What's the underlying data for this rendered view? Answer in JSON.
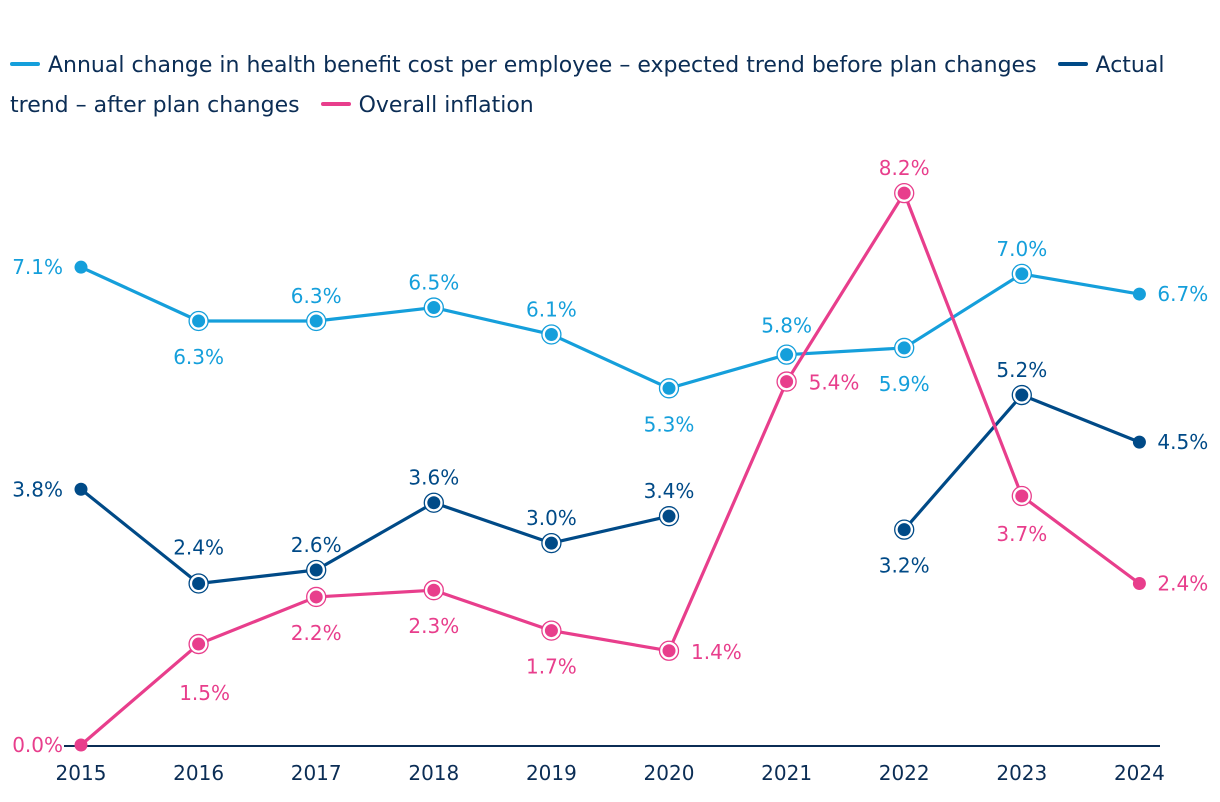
{
  "chart_data": {
    "type": "line",
    "title": "",
    "xlabel": "",
    "ylabel": "",
    "ylim": [
      0,
      8.2
    ],
    "grid": false,
    "legend_position": "top",
    "categories": [
      "2015",
      "2016",
      "2017",
      "2018",
      "2019",
      "2020",
      "2021",
      "2022",
      "2023",
      "2024"
    ],
    "series": [
      {
        "name": "Annual change in health benefit cost per employee – expected trend before plan changes",
        "color": "#159fdb",
        "values": [
          7.1,
          6.3,
          6.3,
          6.5,
          6.1,
          5.3,
          5.8,
          5.9,
          7.0,
          6.7
        ],
        "labels": [
          "7.1%",
          "6.3%",
          "6.3%",
          "6.5%",
          "6.1%",
          "5.3%",
          "5.8%",
          "5.9%",
          "7.0%",
          "6.7%"
        ]
      },
      {
        "name": "Actual trend – after plan changes",
        "color": "#004a87",
        "values": [
          3.8,
          2.4,
          2.6,
          3.6,
          3.0,
          3.4,
          null,
          3.2,
          5.2,
          4.5
        ],
        "labels": [
          "3.8%",
          "2.4%",
          "2.6%",
          "3.6%",
          "3.0%",
          "3.4%",
          null,
          "3.2%",
          "5.2%",
          "4.5%"
        ]
      },
      {
        "name": "Overall inflation",
        "color": "#e83e8c",
        "values": [
          0.0,
          1.5,
          2.2,
          2.3,
          1.7,
          1.4,
          5.4,
          8.2,
          3.7,
          2.4
        ],
        "labels": [
          "0.0%",
          "1.5%",
          "2.2%",
          "2.3%",
          "1.7%",
          "1.4%",
          "5.4%",
          "8.2%",
          "3.7%",
          "2.4%"
        ]
      }
    ]
  },
  "legend": {
    "items": [
      {
        "label": "Annual change in health benefit cost per employee – expected trend before plan changes",
        "color": "#159fdb"
      },
      {
        "label": "Actual trend – after plan changes",
        "color": "#004a87"
      },
      {
        "label": "Overall inflation",
        "color": "#e83e8c"
      }
    ]
  },
  "colors": {
    "axis": "#0b2d55",
    "tick_text": "#0b2d55"
  }
}
